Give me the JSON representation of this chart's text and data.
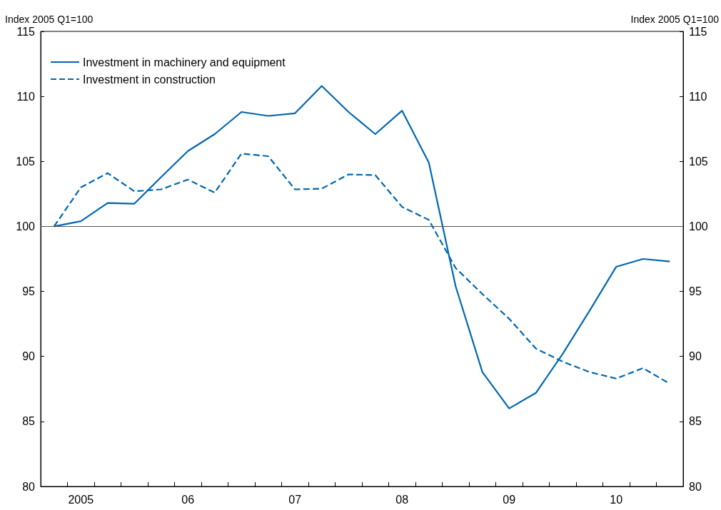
{
  "chart_data": {
    "type": "line",
    "ylabel": "Index 2005 Q1=100",
    "y2label": "Index 2005 Q1=100",
    "categories": [
      null,
      "2005",
      null,
      null,
      null,
      "06",
      null,
      null,
      null,
      "07",
      null,
      null,
      null,
      "08",
      null,
      null,
      null,
      "09",
      null,
      null,
      null,
      "10",
      null,
      null
    ],
    "series": [
      {
        "name": "Investment in machinery and equipment",
        "color": "#0067b1",
        "line_style": "solid",
        "values": [
          100.0,
          100.4,
          101.8,
          101.75,
          103.8,
          105.8,
          107.1,
          108.8,
          108.5,
          108.7,
          110.8,
          108.8,
          107.1,
          108.9,
          104.9,
          95.4,
          88.8,
          86.0,
          87.2,
          90.2,
          93.5,
          96.9,
          97.5,
          97.3
        ]
      },
      {
        "name": "Investment in construction",
        "color": "#0067b1",
        "line_style": "dashed",
        "values": [
          100.0,
          103.0,
          104.1,
          102.7,
          102.85,
          103.6,
          102.6,
          105.6,
          105.4,
          102.85,
          102.9,
          104.0,
          103.95,
          101.5,
          100.5,
          96.8,
          94.8,
          92.9,
          90.6,
          89.6,
          88.8,
          88.3,
          89.1,
          87.9
        ]
      }
    ],
    "ylim": [
      80,
      115
    ],
    "yticks": [
      80,
      85,
      90,
      95,
      100,
      105,
      110,
      115
    ],
    "y2lim": [
      80,
      115
    ],
    "y2ticks": [
      80,
      85,
      90,
      95,
      100,
      105,
      110,
      115
    ],
    "ref_lines": [
      {
        "axis": "y",
        "value": 100,
        "color": "#555555"
      }
    ],
    "grid": false,
    "legend": "top left",
    "marker": "none"
  }
}
